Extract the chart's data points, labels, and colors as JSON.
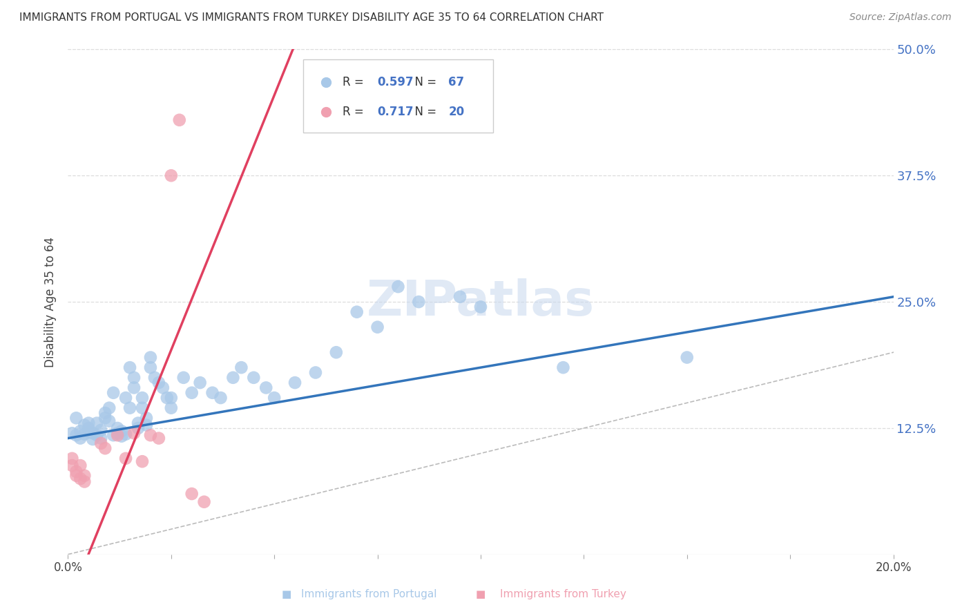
{
  "title": "IMMIGRANTS FROM PORTUGAL VS IMMIGRANTS FROM TURKEY DISABILITY AGE 35 TO 64 CORRELATION CHART",
  "source": "Source: ZipAtlas.com",
  "ylabel": "Disability Age 35 to 64",
  "xlim": [
    0.0,
    0.2
  ],
  "ylim": [
    0.0,
    0.5
  ],
  "xticks": [
    0.0,
    0.025,
    0.05,
    0.075,
    0.1,
    0.125,
    0.15,
    0.175,
    0.2
  ],
  "yticks": [
    0.0,
    0.125,
    0.25,
    0.375,
    0.5
  ],
  "blue_R": 0.597,
  "blue_N": 67,
  "pink_R": 0.717,
  "pink_N": 20,
  "blue_color": "#a8c8e8",
  "blue_line_color": "#3375bb",
  "pink_color": "#f0a0b0",
  "pink_line_color": "#e04060",
  "blue_scatter": [
    [
      0.001,
      0.12
    ],
    [
      0.002,
      0.118
    ],
    [
      0.002,
      0.135
    ],
    [
      0.003,
      0.115
    ],
    [
      0.003,
      0.122
    ],
    [
      0.004,
      0.119
    ],
    [
      0.004,
      0.128
    ],
    [
      0.005,
      0.125
    ],
    [
      0.005,
      0.121
    ],
    [
      0.005,
      0.13
    ],
    [
      0.006,
      0.114
    ],
    [
      0.006,
      0.12
    ],
    [
      0.007,
      0.13
    ],
    [
      0.007,
      0.118
    ],
    [
      0.008,
      0.115
    ],
    [
      0.008,
      0.123
    ],
    [
      0.009,
      0.14
    ],
    [
      0.009,
      0.135
    ],
    [
      0.01,
      0.145
    ],
    [
      0.01,
      0.132
    ],
    [
      0.011,
      0.16
    ],
    [
      0.011,
      0.118
    ],
    [
      0.012,
      0.125
    ],
    [
      0.012,
      0.12
    ],
    [
      0.013,
      0.122
    ],
    [
      0.013,
      0.117
    ],
    [
      0.014,
      0.155
    ],
    [
      0.014,
      0.119
    ],
    [
      0.015,
      0.145
    ],
    [
      0.015,
      0.185
    ],
    [
      0.016,
      0.175
    ],
    [
      0.016,
      0.165
    ],
    [
      0.017,
      0.13
    ],
    [
      0.017,
      0.125
    ],
    [
      0.018,
      0.155
    ],
    [
      0.018,
      0.145
    ],
    [
      0.019,
      0.135
    ],
    [
      0.019,
      0.128
    ],
    [
      0.02,
      0.195
    ],
    [
      0.02,
      0.185
    ],
    [
      0.021,
      0.175
    ],
    [
      0.022,
      0.17
    ],
    [
      0.023,
      0.165
    ],
    [
      0.024,
      0.155
    ],
    [
      0.025,
      0.145
    ],
    [
      0.025,
      0.155
    ],
    [
      0.028,
      0.175
    ],
    [
      0.03,
      0.16
    ],
    [
      0.032,
      0.17
    ],
    [
      0.035,
      0.16
    ],
    [
      0.037,
      0.155
    ],
    [
      0.04,
      0.175
    ],
    [
      0.042,
      0.185
    ],
    [
      0.045,
      0.175
    ],
    [
      0.048,
      0.165
    ],
    [
      0.05,
      0.155
    ],
    [
      0.055,
      0.17
    ],
    [
      0.06,
      0.18
    ],
    [
      0.065,
      0.2
    ],
    [
      0.07,
      0.24
    ],
    [
      0.075,
      0.225
    ],
    [
      0.08,
      0.265
    ],
    [
      0.085,
      0.25
    ],
    [
      0.095,
      0.255
    ],
    [
      0.1,
      0.245
    ],
    [
      0.12,
      0.185
    ],
    [
      0.15,
      0.195
    ]
  ],
  "pink_scatter": [
    [
      0.001,
      0.095
    ],
    [
      0.001,
      0.088
    ],
    [
      0.002,
      0.082
    ],
    [
      0.002,
      0.078
    ],
    [
      0.003,
      0.088
    ],
    [
      0.003,
      0.075
    ],
    [
      0.004,
      0.078
    ],
    [
      0.004,
      0.072
    ],
    [
      0.008,
      0.11
    ],
    [
      0.009,
      0.105
    ],
    [
      0.012,
      0.118
    ],
    [
      0.014,
      0.095
    ],
    [
      0.016,
      0.12
    ],
    [
      0.018,
      0.092
    ],
    [
      0.02,
      0.118
    ],
    [
      0.022,
      0.115
    ],
    [
      0.025,
      0.375
    ],
    [
      0.027,
      0.43
    ],
    [
      0.03,
      0.06
    ],
    [
      0.033,
      0.052
    ]
  ],
  "blue_line_pts": [
    [
      0.0,
      0.115
    ],
    [
      0.2,
      0.255
    ]
  ],
  "pink_line_pts": [
    [
      0.0,
      -0.05
    ],
    [
      0.055,
      0.505
    ]
  ],
  "diag_line_pts": [
    [
      0.0,
      0.0
    ],
    [
      0.5,
      0.5
    ]
  ],
  "background_color": "#ffffff",
  "grid_color": "#dddddd",
  "title_color": "#333333",
  "right_tick_color": "#4472c4",
  "watermark": "ZIPatlas"
}
